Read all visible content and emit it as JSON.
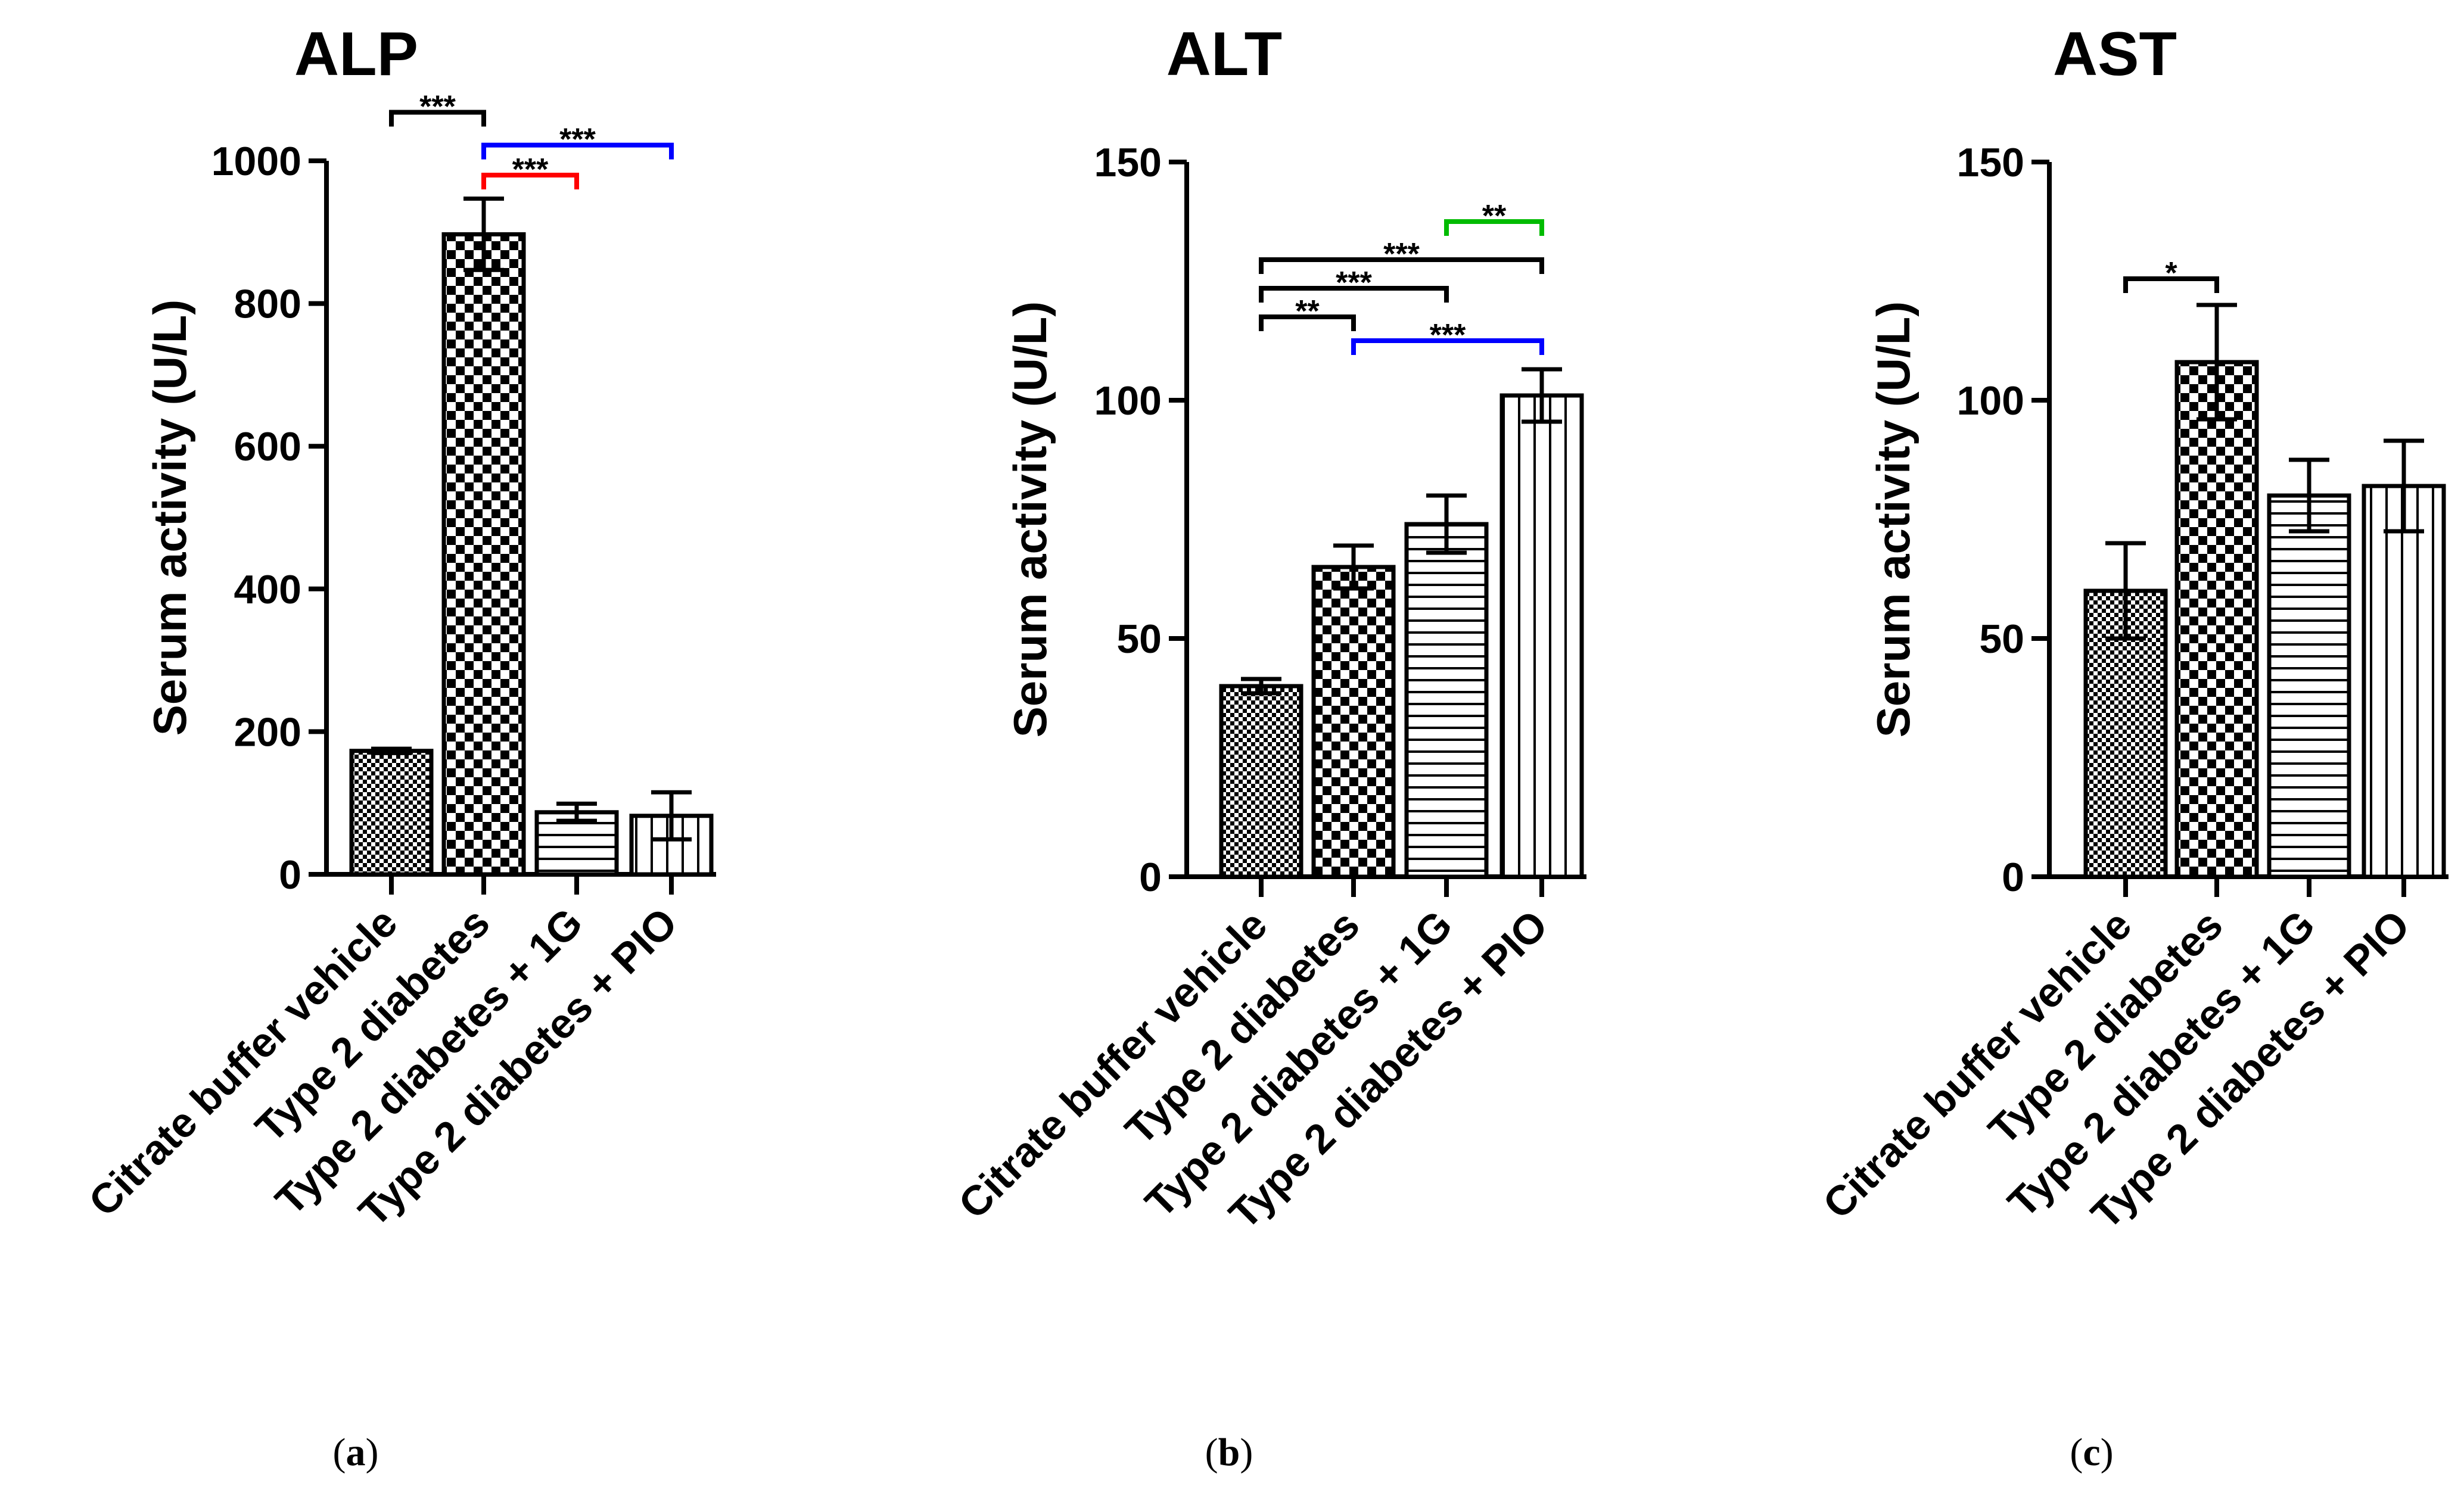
{
  "colors": {
    "ink": "#000000",
    "background": "#ffffff",
    "sig_black": "#000000",
    "sig_red": "#ff0000",
    "sig_blue": "#0000ff",
    "sig_green": "#00bb00"
  },
  "chart_data": [
    {
      "type": "bar",
      "panel": "(a)",
      "panel_letter": "a",
      "title": "ALP",
      "xlabel": "",
      "ylabel": "Serum activity (U/L)",
      "ylim": [
        0,
        1000
      ],
      "yticks": [
        0,
        200,
        400,
        600,
        800,
        1000
      ],
      "categories": [
        "Citrate buffer vehicle",
        "Type 2 diabetes",
        "Type 2 diabetes + 1G",
        "Type 2 diabetes + PIO"
      ],
      "values": [
        173,
        897,
        87,
        82
      ],
      "errors": [
        3,
        50,
        12,
        33
      ],
      "patterns": [
        "fine-check",
        "coarse-check",
        "horizontal-lines",
        "vertical-lines"
      ],
      "significance": [
        {
          "from": 0,
          "to": 1,
          "label": "***",
          "color": "#000000",
          "y": 1068
        },
        {
          "from": 1,
          "to": 2,
          "label": "***",
          "color": "#ff0000",
          "y": 980
        },
        {
          "from": 1,
          "to": 3,
          "label": "***",
          "color": "#0000ff",
          "y": 1022
        }
      ]
    },
    {
      "type": "bar",
      "panel": "(b)",
      "panel_letter": "b",
      "title": "ALT",
      "xlabel": "",
      "ylabel": "Serum activity (U/L)",
      "ylim": [
        0,
        150
      ],
      "yticks": [
        0,
        50,
        100,
        150
      ],
      "categories": [
        "Citrate buffer vehicle",
        "Type 2 diabetes",
        "Type 2 diabetes + 1G",
        "Type 2 diabetes + PIO"
      ],
      "values": [
        40,
        65,
        74,
        101
      ],
      "errors": [
        1.5,
        4.5,
        6,
        5.5
      ],
      "patterns": [
        "fine-check",
        "coarse-check",
        "horizontal-lines",
        "vertical-lines"
      ],
      "significance": [
        {
          "from": 2,
          "to": 3,
          "label": "**",
          "color": "#00bb00",
          "y": 137.5
        },
        {
          "from": 0,
          "to": 3,
          "label": "***",
          "color": "#000000",
          "y": 129.5
        },
        {
          "from": 0,
          "to": 2,
          "label": "***",
          "color": "#000000",
          "y": 123.5
        },
        {
          "from": 0,
          "to": 1,
          "label": "**",
          "color": "#000000",
          "y": 117.5
        },
        {
          "from": 1,
          "to": 3,
          "label": "***",
          "color": "#0000ff",
          "y": 112.5
        }
      ]
    },
    {
      "type": "bar",
      "panel": "(c)",
      "panel_letter": "c",
      "title": "AST",
      "xlabel": "",
      "ylabel": "Serum activity (U/L)",
      "ylim": [
        0,
        150
      ],
      "yticks": [
        0,
        50,
        100,
        150
      ],
      "categories": [
        "Citrate buffer vehicle",
        "Type 2 diabetes",
        "Type 2 diabetes + 1G",
        "Type 2 diabetes + PIO"
      ],
      "values": [
        60,
        108,
        80,
        82
      ],
      "errors": [
        10,
        12,
        7.5,
        9.5
      ],
      "patterns": [
        "fine-check",
        "coarse-check",
        "horizontal-lines",
        "vertical-lines"
      ],
      "significance": [
        {
          "from": 0,
          "to": 1,
          "label": "*",
          "color": "#000000",
          "y": 125.5
        }
      ]
    }
  ]
}
